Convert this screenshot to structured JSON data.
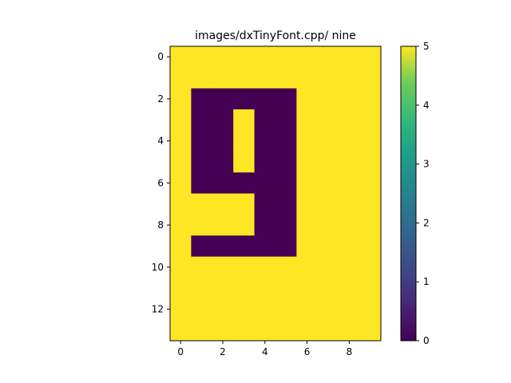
{
  "chart_data": {
    "type": "heatmap",
    "title": "images/dxTinyFont.cpp/ nine",
    "colormap": "viridis",
    "vmin": 0,
    "vmax": 5,
    "x_ticks": [
      0,
      2,
      4,
      6,
      8
    ],
    "y_ticks": [
      0,
      2,
      4,
      6,
      8,
      10,
      12
    ],
    "colorbar_ticks": [
      0,
      1,
      2,
      3,
      4,
      5
    ],
    "grid": false,
    "values": [
      [
        5,
        5,
        5,
        5,
        5,
        5,
        5,
        5,
        5,
        5
      ],
      [
        5,
        5,
        5,
        5,
        5,
        5,
        5,
        5,
        5,
        5
      ],
      [
        5,
        0,
        0,
        0,
        0,
        0,
        5,
        5,
        5,
        5
      ],
      [
        5,
        0,
        0,
        5,
        0,
        0,
        5,
        5,
        5,
        5
      ],
      [
        5,
        0,
        0,
        5,
        0,
        0,
        5,
        5,
        5,
        5
      ],
      [
        5,
        0,
        0,
        5,
        0,
        0,
        5,
        5,
        5,
        5
      ],
      [
        5,
        0,
        0,
        0,
        0,
        0,
        5,
        5,
        5,
        5
      ],
      [
        5,
        5,
        5,
        5,
        0,
        0,
        5,
        5,
        5,
        5
      ],
      [
        5,
        5,
        5,
        5,
        0,
        0,
        5,
        5,
        5,
        5
      ],
      [
        5,
        0,
        0,
        0,
        0,
        0,
        5,
        5,
        5,
        5
      ],
      [
        5,
        5,
        5,
        5,
        5,
        5,
        5,
        5,
        5,
        5
      ],
      [
        5,
        5,
        5,
        5,
        5,
        5,
        5,
        5,
        5,
        5
      ],
      [
        5,
        5,
        5,
        5,
        5,
        5,
        5,
        5,
        5,
        5
      ],
      [
        5,
        5,
        5,
        5,
        5,
        5,
        5,
        5,
        5,
        5
      ]
    ]
  }
}
